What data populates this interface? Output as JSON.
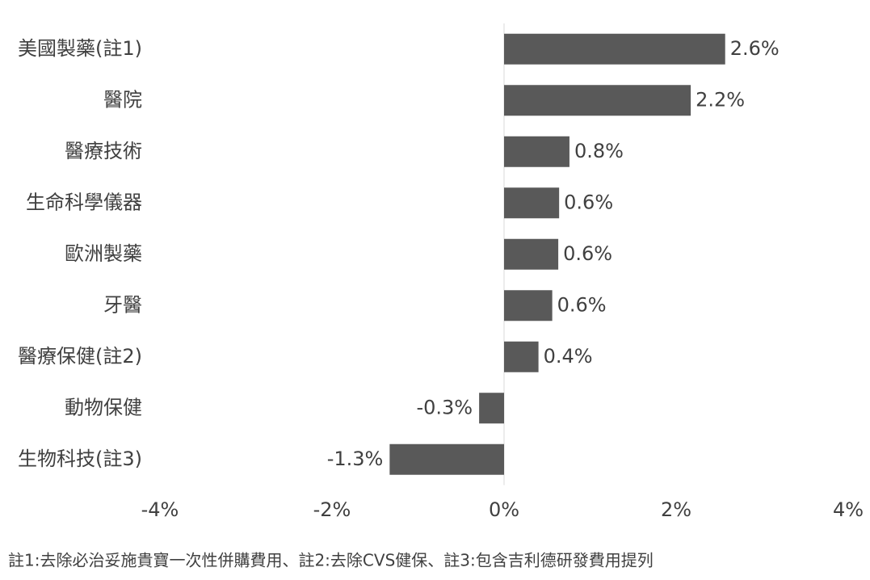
{
  "chart_data": {
    "type": "bar",
    "orientation": "horizontal",
    "categories": [
      "美國製藥(註1)",
      "醫院",
      "醫療技術",
      "生命科學儀器",
      "歐洲製藥",
      "牙醫",
      "醫療保健(註2)",
      "動物保健",
      "生物科技(註3)"
    ],
    "values": [
      2.57,
      2.17,
      0.76,
      0.64,
      0.63,
      0.56,
      0.4,
      -0.29,
      -1.33
    ],
    "value_labels": [
      "2.6%",
      "2.2%",
      "0.8%",
      "0.6%",
      "0.6%",
      "0.6%",
      "0.4%",
      "-0.3%",
      "-1.3%"
    ],
    "color": "#595959",
    "xlim": [
      -4,
      4
    ],
    "xticks": [
      {
        "value": -4,
        "label": "-4%"
      },
      {
        "value": -2,
        "label": "-2%"
      },
      {
        "value": 0,
        "label": "0%"
      },
      {
        "value": 2,
        "label": "2%"
      },
      {
        "value": 4,
        "label": "4%"
      }
    ],
    "grid": false,
    "note": "註1:去除必治妥施貴寶一次性併購費用、註2:去除CVS健保、註3:包含吉利德研發費用提列"
  }
}
